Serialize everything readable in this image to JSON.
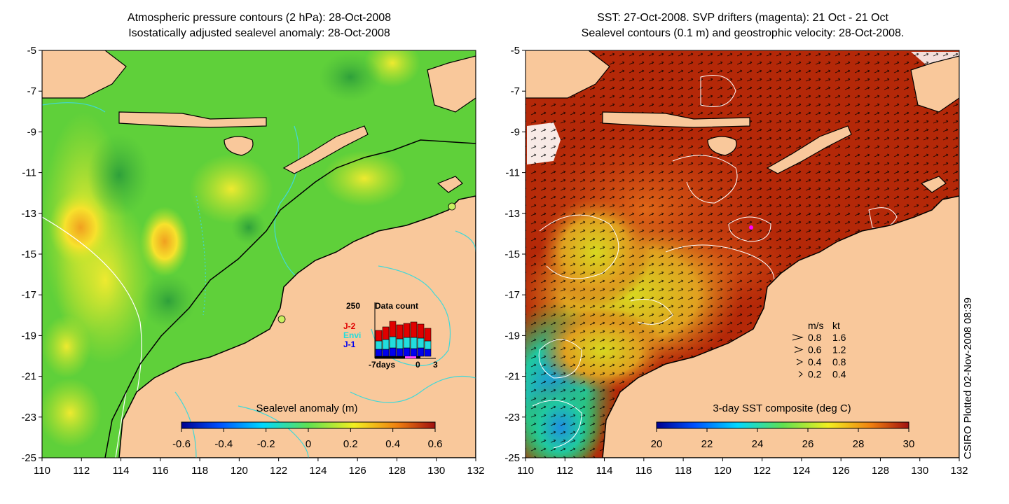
{
  "left_panel": {
    "title_line1": "Atmospheric pressure contours (2 hPa): 28-Oct-2008",
    "title_line2": "Isostatically adjusted sealevel anomaly: 28-Oct-2008",
    "colorbar_label": "Sealevel anomaly (m)",
    "colorbar_ticks": [
      "-0.6",
      "-0.4",
      "-0.2",
      "0",
      "0.2",
      "0.4",
      "0.6"
    ],
    "colorbar_range": [
      -0.6,
      0.6
    ],
    "inset": {
      "title": "Data count",
      "ymax_label": "250",
      "legend": [
        {
          "label": "J-2",
          "color": "#e00000"
        },
        {
          "label": "Envi",
          "color": "#22dddd"
        },
        {
          "label": "J-1",
          "color": "#0000ee"
        }
      ],
      "x_labels": [
        "-7days",
        "0",
        "3"
      ]
    }
  },
  "right_panel": {
    "title_line1": "SST: 27-Oct-2008. SVP drifters (magenta): 21 Oct - 21 Oct",
    "title_line2": "Sealevel contours (0.1 m) and geostrophic velocity: 28-Oct-2008.",
    "colorbar_label": "3-day SST composite (deg C)",
    "colorbar_ticks": [
      "20",
      "22",
      "24",
      "26",
      "28",
      "30"
    ],
    "colorbar_range": [
      20,
      30
    ],
    "velocity_legend": {
      "header_ms": "m/s",
      "header_kt": "kt",
      "rows": [
        {
          "ms": "0.8",
          "kt": "1.6"
        },
        {
          "ms": "0.6",
          "kt": "1.2"
        },
        {
          "ms": "0.4",
          "kt": "0.8"
        },
        {
          "ms": "0.2",
          "kt": "0.4"
        }
      ]
    }
  },
  "axes": {
    "lat_ticks": [
      "-5",
      "-7",
      "-9",
      "-11",
      "-13",
      "-15",
      "-17",
      "-19",
      "-21",
      "-23",
      "-25"
    ],
    "lon_ticks": [
      "110",
      "112",
      "114",
      "116",
      "118",
      "120",
      "122",
      "124",
      "126",
      "128",
      "130",
      "132"
    ],
    "lat_range": [
      -25,
      -5
    ],
    "lon_range": [
      110,
      132
    ]
  },
  "credit": "CSIRO Plotted 02-Nov-2008 08:39",
  "colors": {
    "land": "#f9c89b",
    "sla_base": "#5fd03a",
    "sst_warm": "#b42808",
    "contour_cyan": "#40d8d8"
  }
}
